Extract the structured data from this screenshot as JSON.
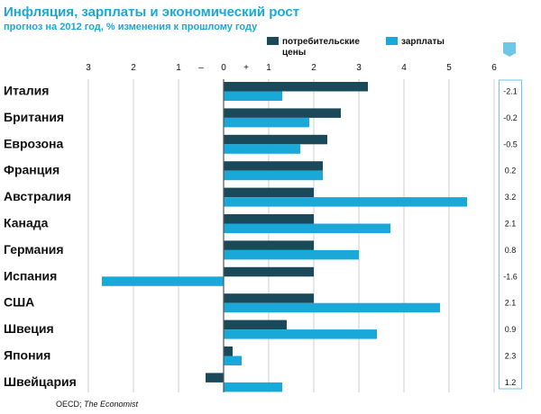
{
  "chart_data": {
    "type": "bar",
    "orientation": "horizontal",
    "title": "Инфляция, зарплаты и экономический рост",
    "subtitle": "прогноз на 2012 год, % изменения к прошлому году",
    "categories": [
      "Италия",
      "Британия",
      "Еврозона",
      "Франция",
      "Австралия",
      "Канада",
      "Германия",
      "Испания",
      "США",
      "Швеция",
      "Япония",
      "Швейцария"
    ],
    "series": [
      {
        "name": "потребительские цены",
        "legend_lines": [
          "потребительские",
          "цены"
        ],
        "color": "#1a4a5a",
        "values": [
          3.2,
          2.6,
          2.3,
          2.2,
          2.0,
          2.0,
          2.0,
          2.0,
          2.0,
          1.4,
          0.2,
          -0.4
        ]
      },
      {
        "name": "зарплаты",
        "legend_lines": [
          "зарплаты"
        ],
        "color": "#1aa8d8",
        "values": [
          1.3,
          1.9,
          1.7,
          2.2,
          5.4,
          3.7,
          3.0,
          -2.7,
          4.8,
          3.4,
          0.4,
          1.3
        ]
      }
    ],
    "gdp_values": [
      "-2.1",
      "-0.2",
      "-0.5",
      "0.2",
      "3.2",
      "2.1",
      "0.8",
      "-1.6",
      "2.1",
      "0.9",
      "2.3",
      "1.2"
    ],
    "x_ticks": [
      {
        "value": -3,
        "label": "3"
      },
      {
        "value": -2,
        "label": "2"
      },
      {
        "value": -1,
        "label": "1"
      },
      {
        "value": -0.5,
        "label": "–"
      },
      {
        "value": 0,
        "label": "0"
      },
      {
        "value": 0.5,
        "label": "+"
      },
      {
        "value": 1,
        "label": "1"
      },
      {
        "value": 2,
        "label": "2"
      },
      {
        "value": 3,
        "label": "3"
      },
      {
        "value": 4,
        "label": "4"
      },
      {
        "value": 5,
        "label": "5"
      },
      {
        "value": 6,
        "label": "6"
      }
    ],
    "xlim": [
      -3,
      6
    ],
    "grid_values": [
      -3,
      -2,
      -1,
      1,
      2,
      3,
      4,
      5,
      6
    ],
    "source": "OECD; The Economist",
    "colors": {
      "title": "#1aa8d8",
      "text": "#111111",
      "grid": "#cccccc",
      "zero_line": "#555555",
      "gdp_box_border": "#6fc6e6",
      "gdp_header": "#6fc6e6"
    }
  }
}
